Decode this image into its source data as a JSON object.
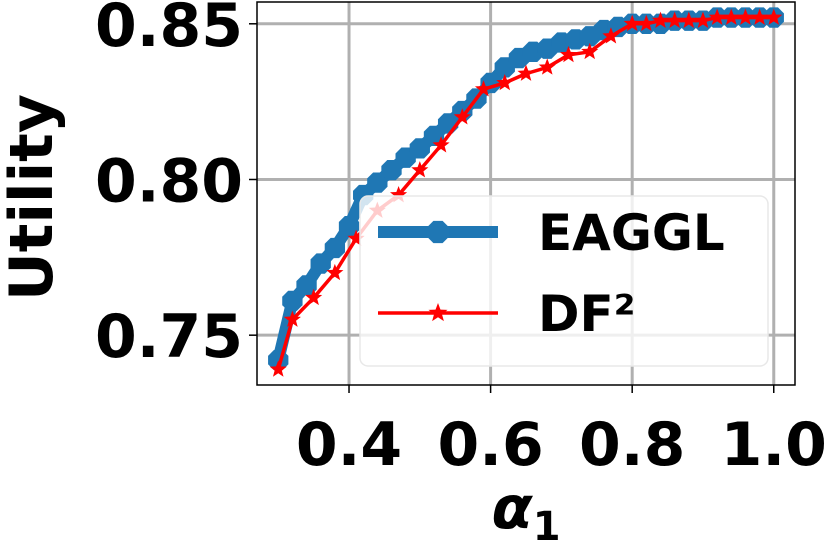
{
  "chart_data": {
    "type": "line",
    "xlabel": "α",
    "xlabel_sub": "1",
    "ylabel": "Utility",
    "xlim": [
      0.27,
      1.03
    ],
    "ylim": [
      0.734,
      0.857
    ],
    "xticks": [
      0.4,
      0.6,
      0.8,
      1.0
    ],
    "xtick_labels": [
      "0.4",
      "0.6",
      "0.8",
      "1.0"
    ],
    "yticks": [
      0.75,
      0.8,
      0.85
    ],
    "ytick_labels": [
      "0.75",
      "0.80",
      "0.85"
    ],
    "grid": true,
    "legend_position": "center-right",
    "series": [
      {
        "name": "EAGGL",
        "color": "#1f77b4",
        "marker": "octagon",
        "x": [
          0.3,
          0.32,
          0.34,
          0.36,
          0.38,
          0.4,
          0.42,
          0.44,
          0.46,
          0.48,
          0.5,
          0.52,
          0.54,
          0.56,
          0.58,
          0.6,
          0.62,
          0.64,
          0.66,
          0.68,
          0.7,
          0.72,
          0.74,
          0.76,
          0.78,
          0.8,
          0.82,
          0.84,
          0.86,
          0.88,
          0.9,
          0.92,
          0.94,
          0.96,
          0.98,
          1.0
        ],
        "values": [
          0.742,
          0.761,
          0.766,
          0.773,
          0.778,
          0.785,
          0.795,
          0.799,
          0.803,
          0.807,
          0.81,
          0.814,
          0.818,
          0.822,
          0.826,
          0.831,
          0.836,
          0.839,
          0.841,
          0.842,
          0.844,
          0.845,
          0.846,
          0.848,
          0.849,
          0.85,
          0.85,
          0.85,
          0.851,
          0.851,
          0.851,
          0.852,
          0.852,
          0.852,
          0.852,
          0.852
        ]
      },
      {
        "name": "DF²",
        "color": "#ff0000",
        "marker": "star",
        "x": [
          0.3,
          0.32,
          0.35,
          0.38,
          0.41,
          0.44,
          0.47,
          0.5,
          0.53,
          0.56,
          0.59,
          0.62,
          0.65,
          0.68,
          0.71,
          0.74,
          0.77,
          0.8,
          0.82,
          0.84,
          0.86,
          0.88,
          0.9,
          0.92,
          0.94,
          0.96,
          0.98,
          1.0
        ],
        "values": [
          0.739,
          0.755,
          0.762,
          0.77,
          0.781,
          0.79,
          0.795,
          0.803,
          0.811,
          0.82,
          0.829,
          0.831,
          0.834,
          0.836,
          0.84,
          0.841,
          0.846,
          0.85,
          0.85,
          0.851,
          0.851,
          0.851,
          0.851,
          0.852,
          0.852,
          0.852,
          0.852,
          0.852
        ]
      }
    ]
  }
}
